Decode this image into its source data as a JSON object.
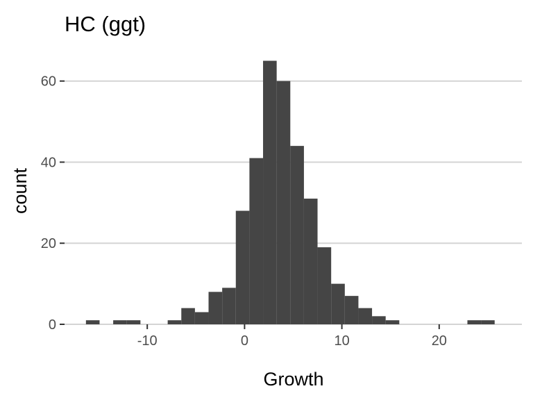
{
  "chart_data": {
    "type": "bar",
    "title": "HC (ggt)",
    "xlabel": "Growth",
    "ylabel": "count",
    "xlim": [
      -18.5,
      28.5
    ],
    "ylim": [
      0,
      68
    ],
    "x_ticks": [
      -10,
      0,
      10,
      20
    ],
    "y_ticks": [
      0,
      20,
      40,
      60
    ],
    "x_tick_labels": [
      "-10",
      "0",
      "10",
      "20"
    ],
    "y_tick_labels": [
      "0",
      "20",
      "40",
      "60"
    ],
    "grid": {
      "horizontal": true,
      "vertical": false
    },
    "bin_width": 1.4,
    "bins": [
      {
        "x0": -16.3,
        "x1": -14.9,
        "count": 1
      },
      {
        "x0": -14.9,
        "x1": -13.5,
        "count": 0
      },
      {
        "x0": -13.5,
        "x1": -12.1,
        "count": 1
      },
      {
        "x0": -12.1,
        "x1": -10.7,
        "count": 1
      },
      {
        "x0": -10.7,
        "x1": -9.3,
        "count": 0
      },
      {
        "x0": -9.3,
        "x1": -7.9,
        "count": 0
      },
      {
        "x0": -7.9,
        "x1": -6.5,
        "count": 1
      },
      {
        "x0": -6.5,
        "x1": -5.1,
        "count": 4
      },
      {
        "x0": -5.1,
        "x1": -3.7,
        "count": 3
      },
      {
        "x0": -3.7,
        "x1": -2.3,
        "count": 8
      },
      {
        "x0": -2.3,
        "x1": -0.9,
        "count": 9
      },
      {
        "x0": -0.9,
        "x1": 0.5,
        "count": 28
      },
      {
        "x0": 0.5,
        "x1": 1.9,
        "count": 41
      },
      {
        "x0": 1.9,
        "x1": 3.3,
        "count": 65
      },
      {
        "x0": 3.3,
        "x1": 4.7,
        "count": 60
      },
      {
        "x0": 4.7,
        "x1": 6.1,
        "count": 44
      },
      {
        "x0": 6.1,
        "x1": 7.5,
        "count": 31
      },
      {
        "x0": 7.5,
        "x1": 8.9,
        "count": 19
      },
      {
        "x0": 8.9,
        "x1": 10.3,
        "count": 10
      },
      {
        "x0": 10.3,
        "x1": 11.7,
        "count": 7
      },
      {
        "x0": 11.7,
        "x1": 13.1,
        "count": 4
      },
      {
        "x0": 13.1,
        "x1": 14.5,
        "count": 2
      },
      {
        "x0": 14.5,
        "x1": 15.9,
        "count": 1
      },
      {
        "x0": 15.9,
        "x1": 17.3,
        "count": 0
      },
      {
        "x0": 17.3,
        "x1": 18.7,
        "count": 0
      },
      {
        "x0": 18.7,
        "x1": 20.1,
        "count": 0
      },
      {
        "x0": 20.1,
        "x1": 21.5,
        "count": 0
      },
      {
        "x0": 21.5,
        "x1": 22.9,
        "count": 0
      },
      {
        "x0": 22.9,
        "x1": 24.3,
        "count": 1
      },
      {
        "x0": 24.3,
        "x1": 25.7,
        "count": 1
      }
    ],
    "colors": {
      "bar": "#454545",
      "grid": "#d4d4d4",
      "background": "#ffffff"
    }
  }
}
